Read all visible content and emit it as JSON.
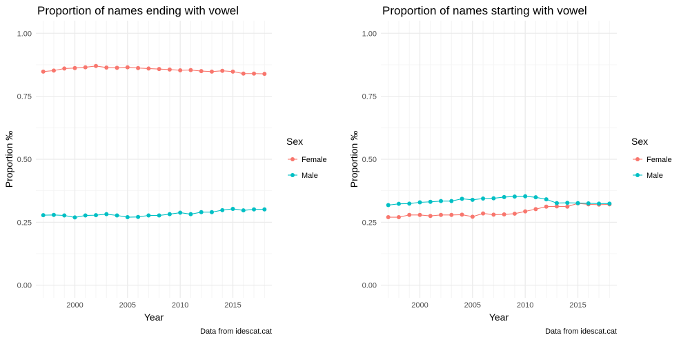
{
  "colors": {
    "female": "#F8766D",
    "male": "#00BFC4",
    "grid_major": "#ebebeb",
    "grid_minor": "#f4f4f4"
  },
  "chart_data": [
    {
      "type": "line",
      "title": "Proportion of names ending with vowel",
      "xlabel": "Year",
      "ylabel": "Proportion ‰",
      "caption": "Data from idescat.cat",
      "legend_title": "Sex",
      "legend_position": "right",
      "grid": true,
      "xlim": [
        1996.3,
        2018.7
      ],
      "ylim": [
        -0.05,
        1.05
      ],
      "xticks": [
        2000,
        2005,
        2010,
        2015
      ],
      "yticks": [
        0.0,
        0.25,
        0.5,
        0.75,
        1.0
      ],
      "ytick_labels": [
        "0.00",
        "0.25",
        "0.50",
        "0.75",
        "1.00"
      ],
      "x": [
        1997,
        1998,
        1999,
        2000,
        2001,
        2002,
        2003,
        2004,
        2005,
        2006,
        2007,
        2008,
        2009,
        2010,
        2011,
        2012,
        2013,
        2014,
        2015,
        2016,
        2017,
        2018
      ],
      "series": [
        {
          "name": "Female",
          "color": "#F8766D",
          "values": [
            0.848,
            0.852,
            0.86,
            0.862,
            0.865,
            0.87,
            0.864,
            0.863,
            0.865,
            0.862,
            0.86,
            0.858,
            0.856,
            0.853,
            0.854,
            0.85,
            0.848,
            0.851,
            0.848,
            0.84,
            0.84,
            0.839
          ]
        },
        {
          "name": "Male",
          "color": "#00BFC4",
          "values": [
            0.278,
            0.279,
            0.277,
            0.269,
            0.277,
            0.278,
            0.282,
            0.277,
            0.27,
            0.271,
            0.277,
            0.277,
            0.282,
            0.288,
            0.282,
            0.29,
            0.29,
            0.298,
            0.303,
            0.297,
            0.301,
            0.301
          ]
        }
      ]
    },
    {
      "type": "line",
      "title": "Proportion of names starting with vowel",
      "xlabel": "Year",
      "ylabel": "Proportion ‰",
      "caption": "Data from idescat.cat",
      "legend_title": "Sex",
      "legend_position": "right",
      "grid": true,
      "xlim": [
        1996.3,
        2018.7
      ],
      "ylim": [
        -0.05,
        1.05
      ],
      "xticks": [
        2000,
        2005,
        2010,
        2015
      ],
      "yticks": [
        0.0,
        0.25,
        0.5,
        0.75,
        1.0
      ],
      "ytick_labels": [
        "0.00",
        "0.25",
        "0.50",
        "0.75",
        "1.00"
      ],
      "x": [
        1997,
        1998,
        1999,
        2000,
        2001,
        2002,
        2003,
        2004,
        2005,
        2006,
        2007,
        2008,
        2009,
        2010,
        2011,
        2012,
        2013,
        2014,
        2015,
        2016,
        2017,
        2018
      ],
      "series": [
        {
          "name": "Female",
          "color": "#F8766D",
          "values": [
            0.27,
            0.27,
            0.279,
            0.279,
            0.275,
            0.279,
            0.279,
            0.28,
            0.272,
            0.285,
            0.28,
            0.281,
            0.284,
            0.293,
            0.302,
            0.312,
            0.313,
            0.312,
            0.325,
            0.321,
            0.32,
            0.321
          ]
        },
        {
          "name": "Male",
          "color": "#00BFC4",
          "values": [
            0.318,
            0.323,
            0.324,
            0.329,
            0.331,
            0.334,
            0.334,
            0.343,
            0.339,
            0.344,
            0.345,
            0.35,
            0.352,
            0.353,
            0.349,
            0.341,
            0.326,
            0.327,
            0.326,
            0.325,
            0.324,
            0.324
          ]
        }
      ]
    }
  ]
}
